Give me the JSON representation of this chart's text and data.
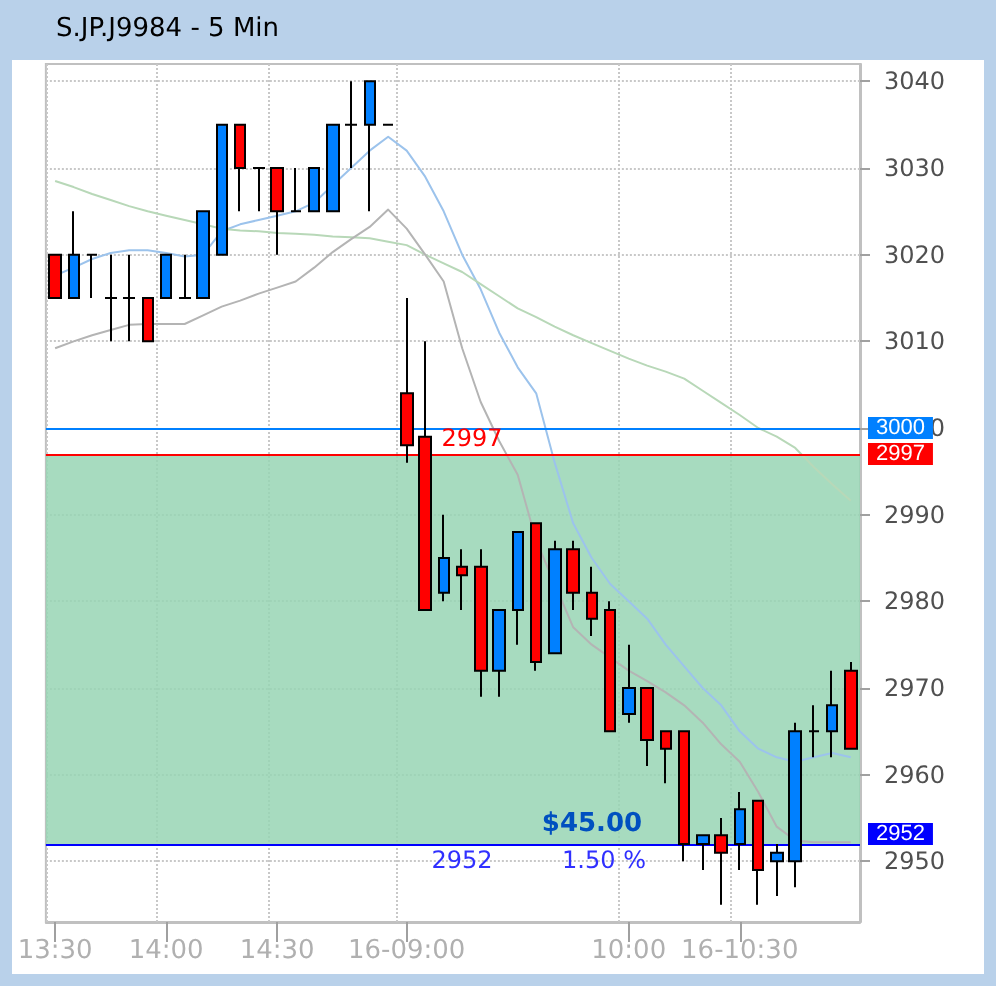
{
  "chart_data": {
    "type": "candlestick",
    "title": "S.JP.J9984 - 5 Min",
    "categories": [
      "13:30",
      null,
      null,
      null,
      null,
      null,
      "14:00",
      null,
      null,
      null,
      null,
      null,
      "14:30",
      null,
      null,
      null,
      null,
      null,
      null,
      "16-09:00",
      null,
      null,
      null,
      null,
      null,
      null,
      null,
      null,
      null,
      null,
      null,
      "10:00",
      null,
      null,
      null,
      null,
      null,
      "16-10:30",
      null,
      null,
      null,
      null,
      null,
      null
    ],
    "series": [
      {
        "type": "candlestick",
        "ohlc": [
          [
            3020,
            3020,
            3015,
            3015
          ],
          [
            3015,
            3025,
            3015,
            3020
          ],
          [
            3020,
            3020,
            3015,
            3020
          ],
          [
            3015,
            3020,
            3010,
            3015
          ],
          [
            3015,
            3020,
            3010,
            3015
          ],
          [
            3015,
            3015,
            3010,
            3010
          ],
          [
            3015,
            3020,
            3015,
            3020
          ],
          [
            3015,
            3020,
            3015,
            3015
          ],
          [
            3015,
            3025,
            3015,
            3025
          ],
          [
            3020,
            3035,
            3020,
            3035
          ],
          [
            3035,
            3035,
            3025,
            3030
          ],
          [
            3030,
            3030,
            3025,
            3030
          ],
          [
            3030,
            3030,
            3020,
            3025
          ],
          [
            3025,
            3030,
            3025,
            3025
          ],
          [
            3025,
            3030,
            3025,
            3030
          ],
          [
            3025,
            3035,
            3025,
            3035
          ],
          [
            3035,
            3040,
            3030,
            3035
          ],
          [
            3035,
            3040,
            3025,
            3040
          ],
          [
            3035,
            3035,
            3035,
            3035
          ],
          [
            3004,
            3015,
            2996,
            2998
          ],
          [
            2999,
            3010,
            2979,
            2979
          ],
          [
            2981,
            2990,
            2980,
            2985
          ],
          [
            2984,
            2986,
            2979,
            2983
          ],
          [
            2984,
            2986,
            2969,
            2972
          ],
          [
            2972,
            2979,
            2969,
            2979
          ],
          [
            2979,
            2988,
            2975,
            2988
          ],
          [
            2989,
            2989,
            2972,
            2973
          ],
          [
            2974,
            2987,
            2974,
            2986
          ],
          [
            2986,
            2987,
            2979,
            2981
          ],
          [
            2981,
            2984,
            2976,
            2978
          ],
          [
            2979,
            2980,
            2965,
            2965
          ],
          [
            2967,
            2975,
            2966,
            2970
          ],
          [
            2970,
            2970,
            2961,
            2964
          ],
          [
            2965,
            2965,
            2959,
            2963
          ],
          [
            2965,
            2965,
            2950,
            2952
          ],
          [
            2952,
            2953,
            2949,
            2953
          ],
          [
            2953,
            2955,
            2945,
            2951
          ],
          [
            2952,
            2958,
            2949,
            2956
          ],
          [
            2957,
            2957,
            2945,
            2949
          ],
          [
            2950,
            2952,
            2946,
            2951
          ],
          [
            2950,
            2966,
            2947,
            2965
          ],
          [
            2965,
            2968,
            2962,
            2965
          ],
          [
            2965,
            2972,
            2962,
            2968
          ],
          [
            2972,
            2973,
            2963,
            2963
          ]
        ],
        "colors": [
          "#ff0000",
          "#0080ff",
          "#000000",
          "#000000",
          "#000000",
          "#ff0000",
          "#0080ff",
          "#000000",
          "#0080ff",
          "#0080ff",
          "#ff0000",
          "#000000",
          "#ff0000",
          "#000000",
          "#0080ff",
          "#0080ff",
          "#000000",
          "#0080ff",
          "#000000",
          "#ff0000",
          "#ff0000",
          "#0080ff",
          "#ff0000",
          "#ff0000",
          "#0080ff",
          "#0080ff",
          "#ff0000",
          "#0080ff",
          "#ff0000",
          "#ff0000",
          "#ff0000",
          "#0080ff",
          "#ff0000",
          "#ff0000",
          "#ff0000",
          "#0080ff",
          "#ff0000",
          "#0080ff",
          "#ff0000",
          "#0080ff",
          "#0080ff",
          "#000000",
          "#0080ff",
          "#ff0000"
        ]
      },
      {
        "type": "line",
        "color": "#9cc3ec",
        "values": [
          3017.6,
          3018.5,
          3019.5,
          3020.2,
          3020.5,
          3020.5,
          3020.2,
          3019.8,
          3020,
          3022.7,
          3023.5,
          3024,
          3024.5,
          3025,
          3026,
          3028,
          3030,
          3032,
          3033.6,
          3032,
          3029,
          3025,
          3020,
          3016,
          3011,
          3007,
          3004,
          2996,
          2989,
          2985,
          2982,
          2980,
          2978,
          2975,
          2972.5,
          2970,
          2968,
          2965,
          2963,
          2962,
          2961.5,
          2962,
          2962.5,
          2962
        ]
      },
      {
        "type": "line",
        "color": "#b8d8b8",
        "values": [
          3028.5,
          3027.8,
          3027,
          3026.3,
          3025.6,
          3025,
          3024.5,
          3024,
          3023.5,
          3023,
          3022.8,
          3022.7,
          3022.5,
          3022.4,
          3022.3,
          3022.1,
          3022,
          3021.9,
          3021.5,
          3021.1,
          3020,
          3019,
          3018,
          3016.6,
          3015.2,
          3013.8,
          3012.8,
          3011.7,
          3010.7,
          3009.8,
          3008.9,
          3008,
          3007.2,
          3006.5,
          3005.7,
          3004.3,
          3002.9,
          3001.5,
          3000,
          2999,
          2997.7,
          2995.5,
          2993.5,
          2991.6
        ]
      },
      {
        "type": "line",
        "color": "#b4b4b4",
        "values": [
          3009.2,
          3010,
          3010.7,
          3011.3,
          3011.9,
          3012,
          3012,
          3012,
          3013,
          3014,
          3014.7,
          3015.5,
          3016.2,
          3016.9,
          3018.5,
          3020.3,
          3021.8,
          3023.2,
          3025.2,
          3023,
          3020,
          3016.9,
          3009.2,
          3003,
          2998.5,
          2994.6,
          2987,
          2982,
          2977,
          2975,
          2973.5,
          2972,
          2970.8,
          2969.5,
          2968,
          2966,
          2963.5,
          2961.5,
          2958,
          2954,
          2952.4,
          2952.2,
          2952.2,
          2952.2
        ]
      }
    ],
    "ylim": [
      2943,
      3042
    ],
    "yticks": [
      2950,
      2960,
      2970,
      2980,
      2990,
      3000,
      3010,
      3020,
      3030,
      3040
    ],
    "grid": true,
    "marker": "none",
    "ref_lines": [
      {
        "axis": "y",
        "value": 3000,
        "label": "3000",
        "color": "#0080ff"
      },
      {
        "axis": "y",
        "value": 2997,
        "label": "2997",
        "color": "#ff0000"
      },
      {
        "axis": "y",
        "value": 2952,
        "label": "2952",
        "color": "#0000ff"
      }
    ],
    "bands": [
      {
        "axis": "y",
        "from": 2952,
        "to": 2997,
        "color": "#98d5b4"
      }
    ],
    "annotations": [
      {
        "text": "2997",
        "y": 2997
      },
      {
        "text": "$45.00",
        "y": 2952
      },
      {
        "text": "2952",
        "y": 2952
      },
      {
        "text": "1.50 %",
        "y": 2952
      }
    ]
  }
}
